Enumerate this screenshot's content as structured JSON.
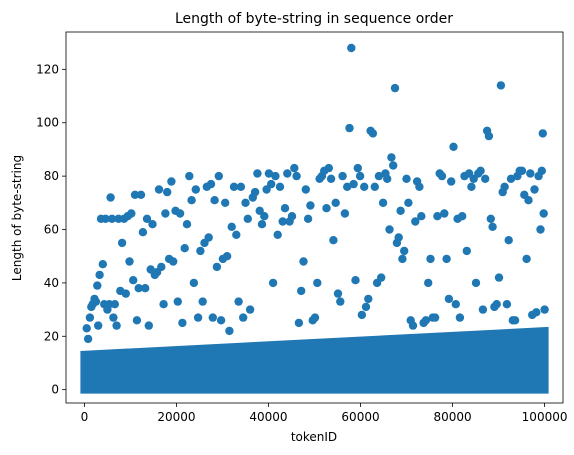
{
  "chart_data": {
    "type": "scatter",
    "title": "Length of byte-string in sequence order",
    "xlabel": "tokenID",
    "ylabel": "Length of byte-string",
    "xlim": [
      -4000,
      104000
    ],
    "ylim": [
      -5,
      134
    ],
    "xticks": [
      0,
      20000,
      40000,
      60000,
      80000,
      100000
    ],
    "yticks": [
      0,
      20,
      40,
      60,
      80,
      100,
      120
    ],
    "grid": false,
    "color": "#1f77b4",
    "dense_band": {
      "x_range": [
        0,
        100000
      ],
      "y_min": 0,
      "y_max_start": 13,
      "y_max_end": 22
    },
    "points": [
      [
        500,
        23
      ],
      [
        800,
        19
      ],
      [
        1200,
        27
      ],
      [
        1500,
        31
      ],
      [
        1800,
        32
      ],
      [
        2200,
        34
      ],
      [
        2500,
        33
      ],
      [
        2800,
        39
      ],
      [
        3000,
        24
      ],
      [
        3300,
        43
      ],
      [
        3600,
        64
      ],
      [
        4000,
        47
      ],
      [
        4300,
        32
      ],
      [
        4600,
        64
      ],
      [
        5000,
        30
      ],
      [
        5400,
        32
      ],
      [
        5700,
        72
      ],
      [
        6000,
        64
      ],
      [
        6300,
        27
      ],
      [
        6600,
        32
      ],
      [
        7000,
        24
      ],
      [
        7400,
        64
      ],
      [
        7800,
        37
      ],
      [
        8200,
        55
      ],
      [
        8600,
        64
      ],
      [
        9000,
        36
      ],
      [
        9400,
        65
      ],
      [
        9800,
        48
      ],
      [
        10200,
        66
      ],
      [
        10600,
        41
      ],
      [
        11000,
        73
      ],
      [
        11400,
        26
      ],
      [
        11800,
        38
      ],
      [
        12300,
        73
      ],
      [
        12700,
        59
      ],
      [
        13200,
        38
      ],
      [
        13600,
        64
      ],
      [
        14000,
        24
      ],
      [
        14400,
        45
      ],
      [
        14800,
        62
      ],
      [
        15300,
        43
      ],
      [
        15800,
        44
      ],
      [
        16200,
        75
      ],
      [
        16700,
        46
      ],
      [
        17200,
        32
      ],
      [
        17600,
        66
      ],
      [
        18000,
        74
      ],
      [
        18400,
        49
      ],
      [
        18900,
        78
      ],
      [
        19300,
        48
      ],
      [
        19800,
        67
      ],
      [
        20300,
        33
      ],
      [
        20800,
        66
      ],
      [
        21300,
        25
      ],
      [
        21800,
        53
      ],
      [
        22300,
        62
      ],
      [
        22800,
        80
      ],
      [
        23300,
        71
      ],
      [
        23800,
        40
      ],
      [
        24200,
        75
      ],
      [
        24700,
        27
      ],
      [
        25200,
        52
      ],
      [
        25700,
        33
      ],
      [
        26100,
        55
      ],
      [
        26600,
        76
      ],
      [
        27000,
        57
      ],
      [
        27500,
        77
      ],
      [
        27900,
        27
      ],
      [
        28300,
        71
      ],
      [
        28800,
        46
      ],
      [
        29200,
        80
      ],
      [
        29700,
        26
      ],
      [
        30100,
        49
      ],
      [
        30600,
        70
      ],
      [
        31000,
        50
      ],
      [
        31500,
        22
      ],
      [
        32000,
        61
      ],
      [
        32500,
        76
      ],
      [
        33000,
        58
      ],
      [
        33500,
        33
      ],
      [
        34000,
        76
      ],
      [
        34500,
        27
      ],
      [
        35000,
        70
      ],
      [
        35500,
        64
      ],
      [
        36000,
        30
      ],
      [
        36600,
        72
      ],
      [
        37100,
        74
      ],
      [
        37600,
        81
      ],
      [
        38100,
        67
      ],
      [
        38600,
        62
      ],
      [
        39100,
        65
      ],
      [
        39600,
        75
      ],
      [
        40100,
        81
      ],
      [
        40600,
        77
      ],
      [
        41000,
        40
      ],
      [
        41500,
        80
      ],
      [
        42000,
        58
      ],
      [
        42500,
        76
      ],
      [
        43100,
        63
      ],
      [
        43600,
        68
      ],
      [
        44100,
        81
      ],
      [
        44600,
        63
      ],
      [
        45100,
        65
      ],
      [
        45600,
        83
      ],
      [
        46100,
        80
      ],
      [
        46600,
        25
      ],
      [
        47100,
        37
      ],
      [
        47600,
        48
      ],
      [
        48100,
        75
      ],
      [
        48600,
        64
      ],
      [
        49100,
        69
      ],
      [
        49600,
        26
      ],
      [
        50100,
        27
      ],
      [
        50600,
        40
      ],
      [
        51100,
        79
      ],
      [
        51600,
        80
      ],
      [
        52100,
        82
      ],
      [
        52600,
        68
      ],
      [
        53100,
        83
      ],
      [
        53600,
        79
      ],
      [
        54100,
        56
      ],
      [
        54600,
        70
      ],
      [
        55100,
        36
      ],
      [
        55600,
        33
      ],
      [
        56100,
        80
      ],
      [
        56600,
        66
      ],
      [
        57100,
        76
      ],
      [
        57600,
        98
      ],
      [
        58000,
        128
      ],
      [
        58500,
        77
      ],
      [
        58900,
        41
      ],
      [
        59400,
        83
      ],
      [
        59900,
        80
      ],
      [
        60300,
        28
      ],
      [
        60800,
        76
      ],
      [
        61200,
        31
      ],
      [
        61700,
        34
      ],
      [
        62200,
        97
      ],
      [
        62700,
        96
      ],
      [
        63100,
        76
      ],
      [
        63600,
        40
      ],
      [
        64000,
        80
      ],
      [
        64500,
        42
      ],
      [
        64900,
        70
      ],
      [
        65400,
        81
      ],
      [
        65800,
        79
      ],
      [
        66300,
        60
      ],
      [
        66700,
        87
      ],
      [
        67100,
        84
      ],
      [
        67500,
        113
      ],
      [
        67900,
        55
      ],
      [
        68300,
        57
      ],
      [
        68700,
        67
      ],
      [
        69100,
        49
      ],
      [
        69500,
        52
      ],
      [
        70000,
        79
      ],
      [
        70400,
        70
      ],
      [
        70900,
        26
      ],
      [
        71400,
        24
      ],
      [
        71900,
        63
      ],
      [
        72300,
        78
      ],
      [
        72800,
        76
      ],
      [
        73200,
        65
      ],
      [
        73700,
        25
      ],
      [
        74200,
        26
      ],
      [
        74700,
        40
      ],
      [
        75200,
        49
      ],
      [
        75700,
        27
      ],
      [
        76200,
        27
      ],
      [
        76700,
        65
      ],
      [
        77200,
        81
      ],
      [
        77700,
        80
      ],
      [
        78200,
        66
      ],
      [
        78700,
        49
      ],
      [
        79200,
        34
      ],
      [
        79700,
        78
      ],
      [
        80200,
        91
      ],
      [
        80700,
        32
      ],
      [
        81100,
        64
      ],
      [
        81600,
        27
      ],
      [
        82100,
        65
      ],
      [
        82600,
        80
      ],
      [
        83100,
        52
      ],
      [
        83600,
        81
      ],
      [
        84100,
        76
      ],
      [
        84600,
        79
      ],
      [
        85100,
        40
      ],
      [
        85600,
        81
      ],
      [
        86100,
        82
      ],
      [
        86600,
        30
      ],
      [
        87100,
        79
      ],
      [
        87500,
        97
      ],
      [
        87900,
        95
      ],
      [
        88300,
        64
      ],
      [
        88700,
        61
      ],
      [
        89100,
        31
      ],
      [
        89600,
        32
      ],
      [
        90100,
        42
      ],
      [
        90500,
        114
      ],
      [
        90900,
        74
      ],
      [
        91300,
        76
      ],
      [
        91800,
        32
      ],
      [
        92200,
        56
      ],
      [
        92700,
        79
      ],
      [
        93100,
        26
      ],
      [
        93600,
        26
      ],
      [
        94100,
        80
      ],
      [
        94600,
        82
      ],
      [
        95100,
        82
      ],
      [
        95600,
        73
      ],
      [
        96100,
        49
      ],
      [
        96500,
        71
      ],
      [
        96900,
        81
      ],
      [
        97300,
        28
      ],
      [
        97800,
        75
      ],
      [
        98200,
        29
      ],
      [
        98700,
        80
      ],
      [
        99100,
        60
      ],
      [
        99400,
        82
      ],
      [
        99600,
        96
      ],
      [
        99800,
        66
      ],
      [
        100000,
        30
      ]
    ]
  }
}
